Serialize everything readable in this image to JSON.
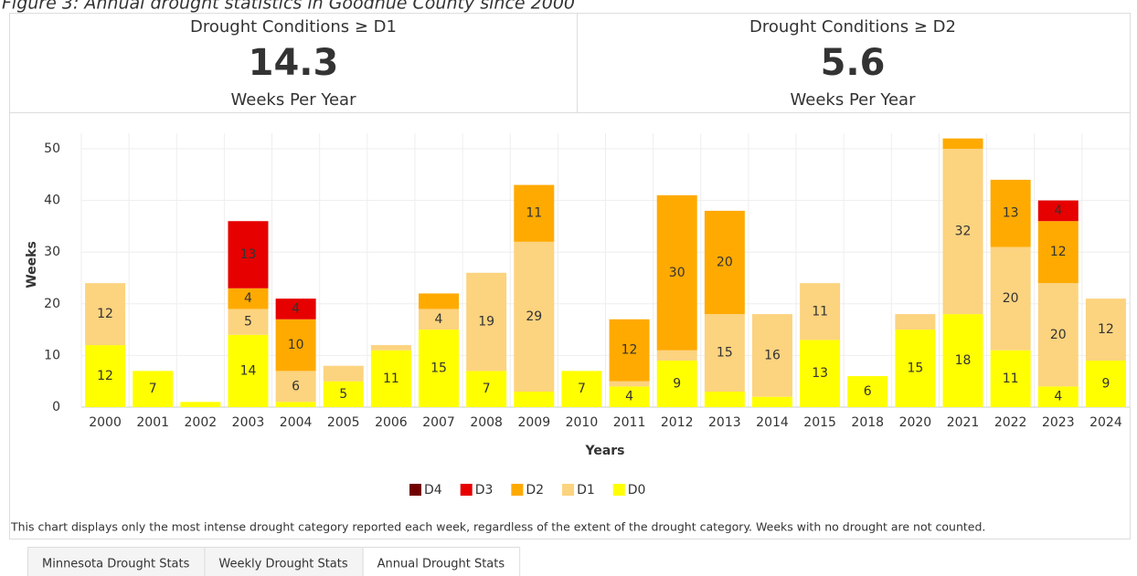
{
  "figure_caption": "Figure 3: Annual drought statistics in Goodhue County since 2000",
  "stats": [
    {
      "label": "Drought Conditions ≥ D1",
      "value": 14.3,
      "unit": "Weeks Per Year"
    },
    {
      "label": "Drought Conditions ≥ D2",
      "value": 5.6,
      "unit": "Weeks Per Year"
    }
  ],
  "chart_data": {
    "type": "stacked_bar",
    "x_label": "Years",
    "y_label": "Weeks",
    "categories": [
      "2000",
      "2001",
      "2002",
      "2003",
      "2004",
      "2005",
      "2006",
      "2007",
      "2008",
      "2009",
      "2010",
      "2011",
      "2012",
      "2013",
      "2014",
      "2015",
      "2018",
      "2020",
      "2021",
      "2022",
      "2023",
      "2024"
    ],
    "series": [
      {
        "name": "D0",
        "color": "#ffff00",
        "values": [
          12,
          7,
          1,
          14,
          1,
          5,
          11,
          15,
          7,
          3,
          7,
          4,
          9,
          3,
          2,
          13,
          6,
          15,
          18,
          11,
          4,
          9
        ]
      },
      {
        "name": "D1",
        "color": "#fcd37f",
        "values": [
          12,
          0,
          0,
          5,
          6,
          3,
          1,
          4,
          19,
          29,
          0,
          1,
          2,
          15,
          16,
          11,
          0,
          3,
          32,
          20,
          20,
          12
        ]
      },
      {
        "name": "D2",
        "color": "#ffaa00",
        "values": [
          0,
          0,
          0,
          4,
          10,
          0,
          0,
          3,
          0,
          11,
          0,
          12,
          30,
          20,
          0,
          0,
          0,
          0,
          2,
          13,
          12,
          0
        ]
      },
      {
        "name": "D3",
        "color": "#e60000",
        "values": [
          0,
          0,
          0,
          13,
          4,
          0,
          0,
          0,
          0,
          0,
          0,
          0,
          0,
          0,
          0,
          0,
          0,
          0,
          0,
          0,
          4,
          0
        ]
      },
      {
        "name": "D4",
        "color": "#730000",
        "values": [
          0,
          0,
          0,
          0,
          0,
          0,
          0,
          0,
          0,
          0,
          0,
          0,
          0,
          0,
          0,
          0,
          0,
          0,
          0,
          0,
          0,
          0
        ]
      }
    ],
    "ylim": [
      0,
      53
    ],
    "yticks": [
      0,
      10,
      20,
      30,
      40,
      50
    ],
    "grid": true,
    "legend": "bottom"
  },
  "footnote": "This chart displays only the most intense drought category reported each week, regardless of the extent of the drought category. Weeks with no drought are not counted.",
  "tabs": [
    "Minnesota Drought Stats",
    "Weekly Drought Stats",
    "Annual Drought Stats"
  ]
}
